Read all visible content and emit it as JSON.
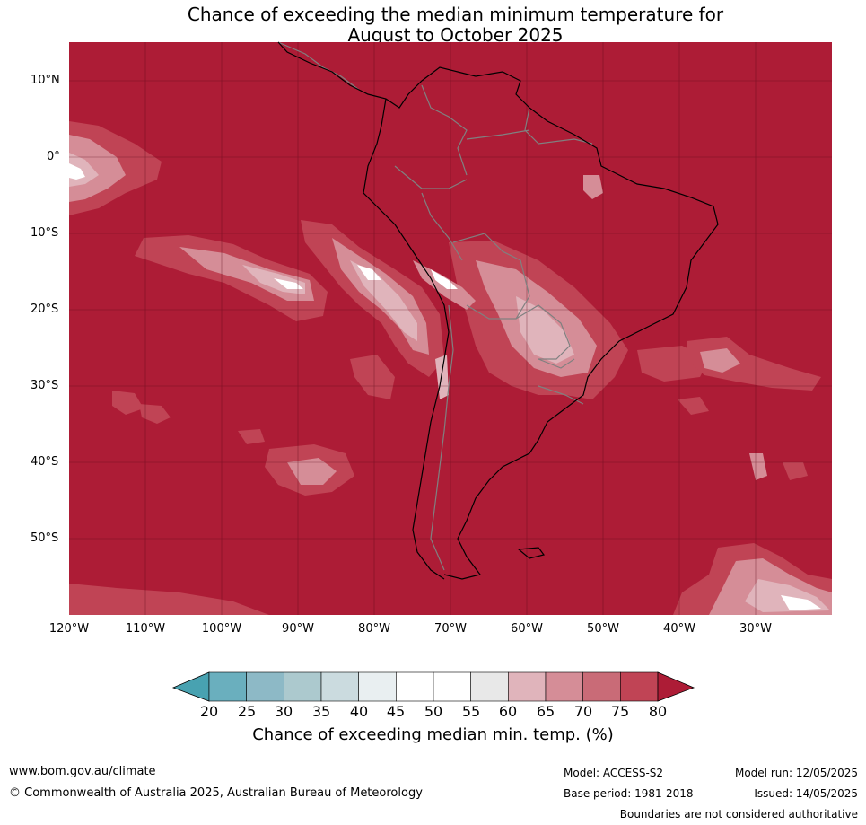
{
  "title": {
    "line1": "Chance of exceeding the median minimum temperature for",
    "line2": "August to October 2025"
  },
  "map": {
    "lat_labels": [
      "10°N",
      "0°",
      "10°S",
      "20°S",
      "30°S",
      "40°S",
      "50°S"
    ],
    "lon_labels": [
      "120°W",
      "110°W",
      "100°W",
      "90°W",
      "80°W",
      "70°W",
      "60°W",
      "50°W",
      "40°W",
      "30°W"
    ],
    "background_color": "#ad1c36"
  },
  "colorbar": {
    "ticks": [
      "20",
      "25",
      "30",
      "35",
      "40",
      "45",
      "50",
      "55",
      "60",
      "65",
      "70",
      "75",
      "80"
    ],
    "colors": [
      "#6aafbe",
      "#8db9c6",
      "#acc9ce",
      "#cbdbdf",
      "#e9eff1",
      "#ffffff",
      "#ffffff",
      "#e8e8e8",
      "#e0b4bb",
      "#d58d97",
      "#c96b77",
      "#c04455"
    ],
    "low_color": "#48a2b1",
    "high_color": "#ad1c36",
    "label": "Chance of exceeding median min. temp. (%)"
  },
  "footer": {
    "website": "www.bom.gov.au/climate",
    "copyright": "© Commonwealth of Australia 2025, Australian Bureau of Meteorology",
    "model": "Model: ACCESS-S2",
    "base_period": "Base period: 1981-2018",
    "model_run": "Model run: 12/05/2025",
    "issued": "Issued: 14/05/2025",
    "boundaries": "Boundaries are not considered authoritative"
  }
}
